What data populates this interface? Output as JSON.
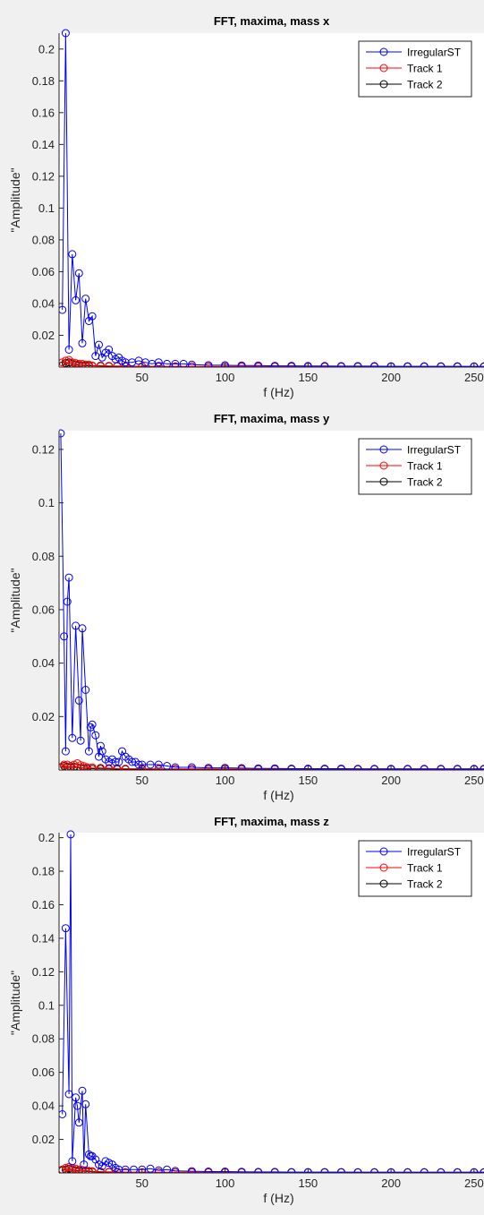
{
  "window": {
    "background": "#f0f0f0"
  },
  "colors": {
    "IrregularST": "#0000ff",
    "Track 1": "#ff0000",
    "Track 2": "#000000"
  },
  "chart_data": [
    {
      "type": "line",
      "title": "FFT, maxima, mass x",
      "xlabel": "f (Hz)",
      "ylabel": "\"Amplitude\"",
      "xlim": [
        0,
        256
      ],
      "ylim": [
        0,
        0.21
      ],
      "xticks": [
        50,
        100,
        150,
        200,
        250
      ],
      "yticks": [
        0.02,
        0.04,
        0.06,
        0.08,
        0.1,
        0.12,
        0.14,
        0.16,
        0.18,
        0.2
      ],
      "legend": "top-right",
      "grid": false,
      "marker": "circle",
      "series": [
        {
          "name": "IrregularST",
          "x": [
            2,
            4,
            6,
            8,
            10,
            12,
            14,
            16,
            18,
            20,
            22,
            24,
            26,
            28,
            30,
            32,
            34,
            36,
            38,
            40,
            44,
            48,
            52,
            56,
            60,
            65,
            70,
            75,
            80,
            90,
            100,
            110,
            120,
            130,
            140,
            150,
            160,
            170,
            180,
            190,
            200,
            210,
            220,
            230,
            240,
            250,
            256
          ],
          "y": [
            0.036,
            0.21,
            0.011,
            0.071,
            0.042,
            0.059,
            0.015,
            0.043,
            0.029,
            0.032,
            0.007,
            0.014,
            0.006,
            0.009,
            0.011,
            0.007,
            0.005,
            0.006,
            0.004,
            0.003,
            0.003,
            0.004,
            0.003,
            0.002,
            0.003,
            0.002,
            0.002,
            0.002,
            0.0015,
            0.0012,
            0.0012,
            0.001,
            0.001,
            0.0008,
            0.0008,
            0.0007,
            0.0007,
            0.0006,
            0.0006,
            0.0006,
            0.0005,
            0.0005,
            0.0005,
            0.0005,
            0.0005,
            0.0004,
            0.0004
          ]
        },
        {
          "name": "Track 1",
          "x": [
            2,
            4,
            6,
            8,
            10,
            12,
            14,
            16,
            18,
            20,
            25,
            30,
            35,
            40,
            50,
            60,
            70,
            80,
            90,
            100,
            110,
            120,
            130,
            140,
            150,
            160,
            170,
            180,
            190,
            200,
            210,
            220,
            230,
            240,
            250,
            256
          ],
          "y": [
            0.003,
            0.004,
            0.0045,
            0.003,
            0.0025,
            0.002,
            0.002,
            0.0015,
            0.0015,
            0.001,
            0.001,
            0.0008,
            0.0007,
            0.0006,
            0.0005,
            0.0005,
            0.0005,
            0.0004,
            0.0004,
            0.0004,
            0.0004,
            0.0004,
            0.0004,
            0.0004,
            0.0004,
            0.0004,
            0.0004,
            0.0004,
            0.0004,
            0.0004,
            0.0004,
            0.0004,
            0.0004,
            0.0004,
            0.0004,
            0.0004
          ]
        },
        {
          "name": "Track 2",
          "x": [
            2,
            4,
            6,
            8,
            10,
            12,
            14,
            16,
            18,
            20,
            25,
            30,
            35,
            40,
            50,
            60,
            70,
            80,
            90,
            100,
            110,
            120,
            130,
            140,
            150,
            160,
            170,
            180,
            190,
            200,
            210,
            220,
            230,
            240,
            250,
            256
          ],
          "y": [
            0.001,
            0.0025,
            0.003,
            0.002,
            0.0015,
            0.0012,
            0.001,
            0.001,
            0.0008,
            0.0008,
            0.0006,
            0.0005,
            0.0005,
            0.0004,
            0.0004,
            0.0003,
            0.0003,
            0.0003,
            0.0003,
            0.0003,
            0.0003,
            0.0003,
            0.0003,
            0.0003,
            0.0003,
            0.0003,
            0.0003,
            0.0003,
            0.0003,
            0.0003,
            0.0003,
            0.0003,
            0.0003,
            0.0003,
            0.0003,
            0.0003
          ]
        }
      ]
    },
    {
      "type": "line",
      "title": "FFT, maxima, mass y",
      "xlabel": "f (Hz)",
      "ylabel": "\"Amplitude\"",
      "xlim": [
        0,
        256
      ],
      "ylim": [
        0,
        0.127
      ],
      "xticks": [
        50,
        100,
        150,
        200,
        250
      ],
      "yticks": [
        0.02,
        0.04,
        0.06,
        0.08,
        0.1,
        0.12
      ],
      "legend": "top-right",
      "grid": false,
      "marker": "circle",
      "series": [
        {
          "name": "IrregularST",
          "x": [
            1,
            3,
            4,
            5,
            6,
            8,
            10,
            12,
            13,
            14,
            16,
            18,
            19,
            20,
            22,
            24,
            25,
            26,
            28,
            30,
            32,
            34,
            36,
            38,
            40,
            42,
            44,
            46,
            48,
            50,
            55,
            60,
            65,
            70,
            80,
            90,
            100,
            110,
            120,
            130,
            140,
            150,
            160,
            170,
            180,
            190,
            200,
            210,
            220,
            230,
            240,
            250,
            256
          ],
          "y": [
            0.126,
            0.05,
            0.007,
            0.063,
            0.072,
            0.012,
            0.054,
            0.026,
            0.011,
            0.053,
            0.03,
            0.007,
            0.016,
            0.017,
            0.013,
            0.005,
            0.009,
            0.007,
            0.004,
            0.003,
            0.004,
            0.003,
            0.003,
            0.007,
            0.005,
            0.004,
            0.003,
            0.003,
            0.002,
            0.002,
            0.002,
            0.002,
            0.0015,
            0.001,
            0.001,
            0.0008,
            0.0008,
            0.0007,
            0.0006,
            0.0006,
            0.0005,
            0.0005,
            0.0005,
            0.0005,
            0.0004,
            0.0004,
            0.0004,
            0.0004,
            0.0004,
            0.0004,
            0.0004,
            0.0004,
            0.0004
          ]
        },
        {
          "name": "Track 1",
          "x": [
            1,
            3,
            5,
            7,
            9,
            11,
            13,
            15,
            17,
            20,
            25,
            30,
            35,
            40,
            50,
            60,
            70,
            80,
            90,
            100,
            110,
            120,
            130,
            140,
            150,
            160,
            170,
            180,
            190,
            200,
            210,
            220,
            230,
            240,
            250,
            256
          ],
          "y": [
            0.001,
            0.002,
            0.002,
            0.0015,
            0.002,
            0.0025,
            0.0018,
            0.0014,
            0.001,
            0.001,
            0.0008,
            0.0007,
            0.0006,
            0.0005,
            0.0005,
            0.0004,
            0.0004,
            0.0004,
            0.0004,
            0.0004,
            0.0004,
            0.0004,
            0.0004,
            0.0004,
            0.0004,
            0.0004,
            0.0004,
            0.0004,
            0.0004,
            0.0004,
            0.0004,
            0.0004,
            0.0004,
            0.0004,
            0.0004,
            0.0004
          ]
        },
        {
          "name": "Track 2",
          "x": [
            1,
            3,
            5,
            7,
            9,
            11,
            13,
            15,
            17,
            20,
            25,
            30,
            35,
            40,
            50,
            60,
            70,
            80,
            90,
            100,
            110,
            120,
            130,
            140,
            150,
            160,
            170,
            180,
            190,
            200,
            210,
            220,
            230,
            240,
            250,
            256
          ],
          "y": [
            0.0008,
            0.0015,
            0.0012,
            0.001,
            0.0012,
            0.001,
            0.0008,
            0.0007,
            0.0006,
            0.0005,
            0.0004,
            0.0004,
            0.0003,
            0.0003,
            0.0003,
            0.0003,
            0.0003,
            0.0003,
            0.0003,
            0.0003,
            0.0003,
            0.0003,
            0.0003,
            0.0003,
            0.0003,
            0.0003,
            0.0003,
            0.0003,
            0.0003,
            0.0003,
            0.0003,
            0.0003,
            0.0003,
            0.0003,
            0.0003,
            0.0003
          ]
        }
      ]
    },
    {
      "type": "line",
      "title": "FFT, maxima, mass z",
      "xlabel": "f (Hz)",
      "ylabel": "\"Amplitude\"",
      "xlim": [
        0,
        256
      ],
      "ylim": [
        0,
        0.203
      ],
      "xticks": [
        50,
        100,
        150,
        200,
        250
      ],
      "yticks": [
        0.02,
        0.04,
        0.06,
        0.08,
        0.1,
        0.12,
        0.14,
        0.16,
        0.18,
        0.2
      ],
      "legend": "top-right",
      "grid": false,
      "marker": "circle",
      "series": [
        {
          "name": "IrregularST",
          "x": [
            2,
            4,
            6,
            7,
            8,
            10,
            11,
            12,
            14,
            15,
            16,
            18,
            19,
            20,
            22,
            24,
            26,
            28,
            30,
            32,
            34,
            36,
            40,
            45,
            50,
            55,
            60,
            65,
            70,
            80,
            90,
            100,
            110,
            120,
            130,
            140,
            150,
            160,
            170,
            180,
            190,
            200,
            210,
            220,
            230,
            240,
            250,
            256
          ],
          "y": [
            0.035,
            0.146,
            0.047,
            0.202,
            0.007,
            0.045,
            0.04,
            0.03,
            0.049,
            0.005,
            0.041,
            0.011,
            0.01,
            0.01,
            0.008,
            0.005,
            0.004,
            0.007,
            0.006,
            0.005,
            0.003,
            0.002,
            0.002,
            0.002,
            0.002,
            0.0025,
            0.0015,
            0.002,
            0.0012,
            0.001,
            0.0008,
            0.0008,
            0.0007,
            0.0006,
            0.0006,
            0.0005,
            0.0005,
            0.0005,
            0.0005,
            0.0004,
            0.0004,
            0.0004,
            0.0004,
            0.0004,
            0.0004,
            0.0004,
            0.0004,
            0.0004
          ]
        },
        {
          "name": "Track 1",
          "x": [
            2,
            4,
            6,
            8,
            10,
            12,
            14,
            16,
            18,
            20,
            25,
            30,
            35,
            40,
            50,
            60,
            70,
            80,
            90,
            100,
            110,
            120,
            130,
            140,
            150,
            160,
            170,
            180,
            190,
            200,
            210,
            220,
            230,
            240,
            250,
            256
          ],
          "y": [
            0.002,
            0.003,
            0.0035,
            0.003,
            0.0025,
            0.002,
            0.0018,
            0.0015,
            0.0012,
            0.001,
            0.0008,
            0.0007,
            0.0006,
            0.0005,
            0.0005,
            0.0004,
            0.0004,
            0.0004,
            0.0004,
            0.0004,
            0.0004,
            0.0004,
            0.0004,
            0.0004,
            0.0004,
            0.0004,
            0.0004,
            0.0004,
            0.0004,
            0.0004,
            0.0004,
            0.0004,
            0.0004,
            0.0004,
            0.0004,
            0.0004
          ]
        },
        {
          "name": "Track 2",
          "x": [
            2,
            4,
            6,
            8,
            10,
            12,
            14,
            16,
            18,
            20,
            25,
            30,
            35,
            40,
            50,
            60,
            70,
            80,
            90,
            100,
            110,
            120,
            130,
            140,
            150,
            160,
            170,
            180,
            190,
            200,
            210,
            220,
            230,
            240,
            250,
            256
          ],
          "y": [
            0.0015,
            0.002,
            0.0025,
            0.002,
            0.0015,
            0.0012,
            0.001,
            0.001,
            0.0008,
            0.0007,
            0.0005,
            0.0005,
            0.0004,
            0.0004,
            0.0003,
            0.0003,
            0.0003,
            0.0003,
            0.0003,
            0.0003,
            0.0003,
            0.0003,
            0.0003,
            0.0003,
            0.0003,
            0.0003,
            0.0003,
            0.0003,
            0.0003,
            0.0003,
            0.0003,
            0.0003,
            0.0003,
            0.0003,
            0.0003,
            0.0003
          ]
        }
      ]
    }
  ]
}
